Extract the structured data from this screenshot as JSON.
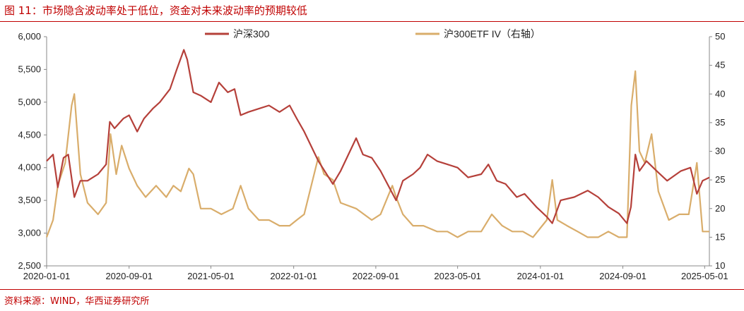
{
  "title": "图 11：市场隐含波动率处于低位，资金对未来波动率的预期较低",
  "source": "资料来源：WIND，华西证券研究所",
  "chart_data": {
    "type": "line",
    "title": "图 11：市场隐含波动率处于低位，资金对未来波动率的预期较低",
    "x_tick_labels": [
      "2020-01-01",
      "2020-09-01",
      "2021-05-01",
      "2022-01-01",
      "2022-09-01",
      "2023-05-01",
      "2024-01-01",
      "2024-09-01",
      "2025-05-01"
    ],
    "x_range": [
      "2020-01-01",
      "2025-05-15"
    ],
    "y_left": {
      "ylim": [
        2500,
        6000
      ],
      "ticks": [
        2500,
        3000,
        3500,
        4000,
        4500,
        5000,
        5500,
        6000
      ],
      "tick_labels": [
        "2,500",
        "3,000",
        "3,500",
        "4,000",
        "4,500",
        "5,000",
        "5,500",
        "6,000"
      ]
    },
    "y_right": {
      "ylim": [
        10,
        50
      ],
      "ticks": [
        10,
        15,
        20,
        25,
        30,
        35,
        40,
        45,
        50
      ],
      "tick_labels": [
        "10",
        "15",
        "20",
        "25",
        "30",
        "35",
        "40",
        "45",
        "50"
      ]
    },
    "legend_placement": "top",
    "grid": false,
    "series": [
      {
        "name": "沪深300",
        "axis": "left",
        "color": "#b5403a",
        "points": [
          [
            "2020-01-01",
            4100
          ],
          [
            "2020-01-20",
            4200
          ],
          [
            "2020-02-03",
            3700
          ],
          [
            "2020-02-20",
            4150
          ],
          [
            "2020-03-05",
            4200
          ],
          [
            "2020-03-23",
            3550
          ],
          [
            "2020-04-10",
            3800
          ],
          [
            "2020-05-01",
            3800
          ],
          [
            "2020-06-01",
            3900
          ],
          [
            "2020-06-25",
            4050
          ],
          [
            "2020-07-06",
            4700
          ],
          [
            "2020-07-20",
            4600
          ],
          [
            "2020-08-15",
            4750
          ],
          [
            "2020-09-01",
            4800
          ],
          [
            "2020-09-25",
            4550
          ],
          [
            "2020-10-15",
            4750
          ],
          [
            "2020-11-10",
            4900
          ],
          [
            "2020-12-01",
            5000
          ],
          [
            "2020-12-31",
            5200
          ],
          [
            "2021-01-20",
            5500
          ],
          [
            "2021-02-10",
            5800
          ],
          [
            "2021-02-20",
            5650
          ],
          [
            "2021-03-10",
            5150
          ],
          [
            "2021-04-01",
            5100
          ],
          [
            "2021-05-01",
            5000
          ],
          [
            "2021-05-25",
            5300
          ],
          [
            "2021-06-20",
            5150
          ],
          [
            "2021-07-10",
            5200
          ],
          [
            "2021-07-28",
            4800
          ],
          [
            "2021-08-20",
            4850
          ],
          [
            "2021-09-20",
            4900
          ],
          [
            "2021-10-20",
            4950
          ],
          [
            "2021-11-20",
            4850
          ],
          [
            "2021-12-20",
            4950
          ],
          [
            "2022-01-10",
            4750
          ],
          [
            "2022-02-01",
            4550
          ],
          [
            "2022-03-15",
            4100
          ],
          [
            "2022-04-27",
            3750
          ],
          [
            "2022-05-20",
            3950
          ],
          [
            "2022-07-05",
            4450
          ],
          [
            "2022-07-25",
            4200
          ],
          [
            "2022-08-20",
            4150
          ],
          [
            "2022-09-15",
            3950
          ],
          [
            "2022-10-31",
            3500
          ],
          [
            "2022-11-20",
            3800
          ],
          [
            "2022-12-20",
            3900
          ],
          [
            "2023-01-10",
            4000
          ],
          [
            "2023-02-01",
            4200
          ],
          [
            "2023-03-01",
            4100
          ],
          [
            "2023-04-01",
            4050
          ],
          [
            "2023-05-01",
            4000
          ],
          [
            "2023-06-01",
            3850
          ],
          [
            "2023-07-10",
            3900
          ],
          [
            "2023-07-31",
            4050
          ],
          [
            "2023-08-25",
            3800
          ],
          [
            "2023-09-20",
            3750
          ],
          [
            "2023-10-23",
            3550
          ],
          [
            "2023-11-15",
            3600
          ],
          [
            "2023-12-20",
            3400
          ],
          [
            "2024-01-20",
            3250
          ],
          [
            "2024-02-05",
            3150
          ],
          [
            "2024-03-01",
            3500
          ],
          [
            "2024-04-10",
            3550
          ],
          [
            "2024-05-20",
            3650
          ],
          [
            "2024-06-20",
            3550
          ],
          [
            "2024-07-20",
            3400
          ],
          [
            "2024-08-20",
            3300
          ],
          [
            "2024-09-13",
            3150
          ],
          [
            "2024-09-25",
            3400
          ],
          [
            "2024-10-08",
            4200
          ],
          [
            "2024-10-20",
            3950
          ],
          [
            "2024-11-10",
            4100
          ],
          [
            "2024-12-10",
            3950
          ],
          [
            "2025-01-10",
            3800
          ],
          [
            "2025-02-20",
            3950
          ],
          [
            "2025-03-20",
            4000
          ],
          [
            "2025-04-08",
            3600
          ],
          [
            "2025-04-25",
            3800
          ],
          [
            "2025-05-15",
            3850
          ]
        ]
      },
      {
        "name": "沪300ETF IV（右轴）",
        "axis": "right",
        "color": "#d9ad6b",
        "points": [
          [
            "2020-01-01",
            15
          ],
          [
            "2020-01-20",
            18
          ],
          [
            "2020-02-03",
            24
          ],
          [
            "2020-02-25",
            28
          ],
          [
            "2020-03-15",
            38
          ],
          [
            "2020-03-23",
            40
          ],
          [
            "2020-04-10",
            26
          ],
          [
            "2020-05-01",
            21
          ],
          [
            "2020-06-01",
            19
          ],
          [
            "2020-06-25",
            21
          ],
          [
            "2020-07-08",
            33
          ],
          [
            "2020-07-25",
            26
          ],
          [
            "2020-08-10",
            31
          ],
          [
            "2020-09-01",
            27
          ],
          [
            "2020-09-25",
            24
          ],
          [
            "2020-10-20",
            22
          ],
          [
            "2020-11-20",
            24
          ],
          [
            "2020-12-20",
            22
          ],
          [
            "2021-01-10",
            24
          ],
          [
            "2021-02-01",
            23
          ],
          [
            "2021-02-25",
            27
          ],
          [
            "2021-03-10",
            26
          ],
          [
            "2021-04-01",
            20
          ],
          [
            "2021-05-01",
            20
          ],
          [
            "2021-06-01",
            19
          ],
          [
            "2021-07-05",
            20
          ],
          [
            "2021-07-28",
            24
          ],
          [
            "2021-08-20",
            20
          ],
          [
            "2021-09-20",
            18
          ],
          [
            "2021-10-20",
            18
          ],
          [
            "2021-11-20",
            17
          ],
          [
            "2021-12-20",
            17
          ],
          [
            "2022-01-10",
            18
          ],
          [
            "2022-02-01",
            19
          ],
          [
            "2022-03-15",
            29
          ],
          [
            "2022-04-01",
            26
          ],
          [
            "2022-04-27",
            25
          ],
          [
            "2022-05-20",
            21
          ],
          [
            "2022-07-05",
            20
          ],
          [
            "2022-08-20",
            18
          ],
          [
            "2022-09-15",
            19
          ],
          [
            "2022-10-20",
            24
          ],
          [
            "2022-10-31",
            22
          ],
          [
            "2022-11-20",
            19
          ],
          [
            "2022-12-20",
            17
          ],
          [
            "2023-01-20",
            17
          ],
          [
            "2023-03-01",
            16
          ],
          [
            "2023-04-01",
            16
          ],
          [
            "2023-05-01",
            15
          ],
          [
            "2023-06-01",
            16
          ],
          [
            "2023-07-10",
            16
          ],
          [
            "2023-08-10",
            19
          ],
          [
            "2023-09-10",
            17
          ],
          [
            "2023-10-10",
            16
          ],
          [
            "2023-11-10",
            16
          ],
          [
            "2023-12-10",
            15
          ],
          [
            "2024-01-20",
            18
          ],
          [
            "2024-02-05",
            25
          ],
          [
            "2024-02-20",
            18
          ],
          [
            "2024-03-20",
            17
          ],
          [
            "2024-04-20",
            16
          ],
          [
            "2024-05-20",
            15
          ],
          [
            "2024-06-20",
            15
          ],
          [
            "2024-07-20",
            16
          ],
          [
            "2024-08-20",
            15
          ],
          [
            "2024-09-13",
            15
          ],
          [
            "2024-09-26",
            38
          ],
          [
            "2024-10-08",
            44
          ],
          [
            "2024-10-20",
            30
          ],
          [
            "2024-11-05",
            28
          ],
          [
            "2024-11-25",
            33
          ],
          [
            "2024-12-15",
            23
          ],
          [
            "2025-01-15",
            18
          ],
          [
            "2025-02-15",
            19
          ],
          [
            "2025-03-15",
            19
          ],
          [
            "2025-04-08",
            28
          ],
          [
            "2025-04-25",
            16
          ],
          [
            "2025-05-15",
            16
          ]
        ]
      }
    ]
  }
}
